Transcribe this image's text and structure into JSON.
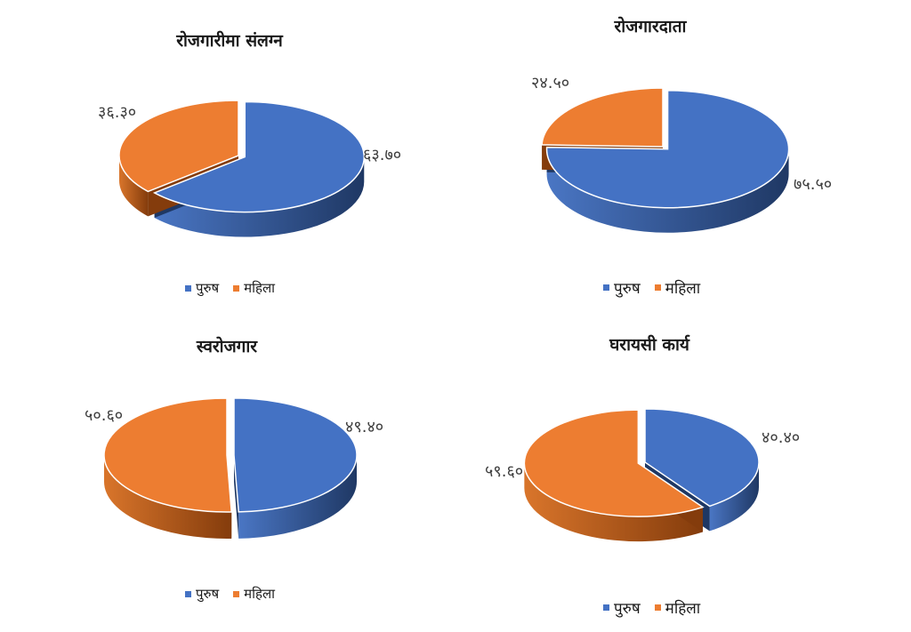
{
  "colors": {
    "purush": "#4472C4",
    "mahila": "#ED7D31"
  },
  "legend": {
    "items": [
      "पुरुष",
      "महिला"
    ]
  },
  "chart_data": [
    {
      "type": "pie",
      "title": "रोजगारीमा संलग्न",
      "categories": [
        "पुरुष",
        "महिला"
      ],
      "values": [
        63.7,
        36.3
      ],
      "value_labels": [
        "६३.७०",
        "३६.३०"
      ],
      "legend_position": "bottom"
    },
    {
      "type": "pie",
      "title": "रोजगारदाता",
      "categories": [
        "पुरुष",
        "महिला"
      ],
      "values": [
        75.5,
        24.5
      ],
      "value_labels": [
        "७५.५०",
        "२४.५०"
      ],
      "legend_position": "bottom"
    },
    {
      "type": "pie",
      "title": "स्वरोजगार",
      "categories": [
        "पुरुष",
        "महिला"
      ],
      "values": [
        49.4,
        50.6
      ],
      "value_labels": [
        "४९.४०",
        "५०.६०"
      ],
      "legend_position": "bottom"
    },
    {
      "type": "pie",
      "title": "घरायसी कार्य",
      "categories": [
        "पुरुष",
        "महिला"
      ],
      "values": [
        40.4,
        59.6
      ],
      "value_labels": [
        "४०.४०",
        "५९.६०"
      ],
      "legend_position": "bottom"
    }
  ]
}
